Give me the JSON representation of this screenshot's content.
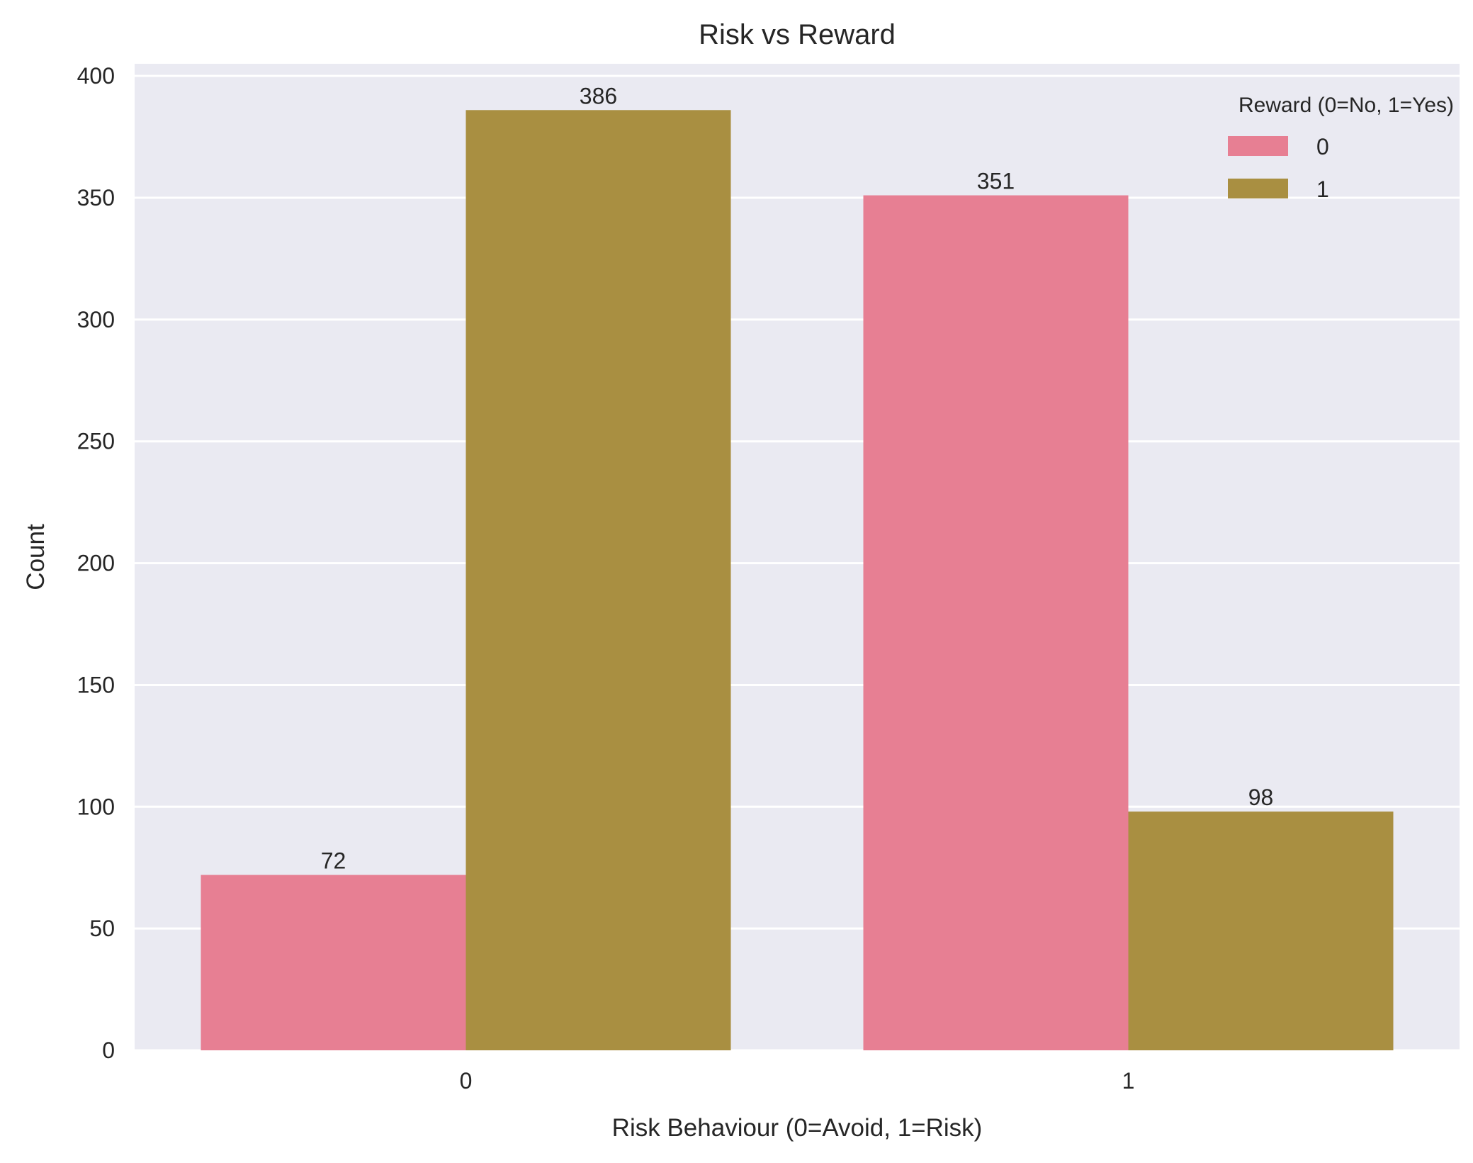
{
  "chart_data": {
    "type": "bar",
    "title": "Risk vs Reward",
    "xlabel": "Risk Behaviour (0=Avoid, 1=Risk)",
    "ylabel": "Count",
    "categories": [
      "0",
      "1"
    ],
    "series": [
      {
        "name": "0",
        "values": [
          72,
          351
        ],
        "color": "#e77f93"
      },
      {
        "name": "1",
        "values": [
          386,
          98
        ],
        "color": "#a98f41"
      }
    ],
    "data_labels": [
      [
        "72",
        "351"
      ],
      [
        "386",
        "98"
      ]
    ],
    "ylim": [
      0,
      405
    ],
    "yticks": [
      0,
      50,
      100,
      150,
      200,
      250,
      300,
      350,
      400
    ],
    "ytick_labels": [
      "0",
      "50",
      "100",
      "150",
      "200",
      "250",
      "300",
      "350",
      "400"
    ],
    "grid": true,
    "legend": {
      "title": "Reward (0=No, 1=Yes)",
      "placement": "top-right"
    },
    "colors": {
      "plot_background": "#eaeaf2",
      "grid": "#ffffff"
    }
  }
}
